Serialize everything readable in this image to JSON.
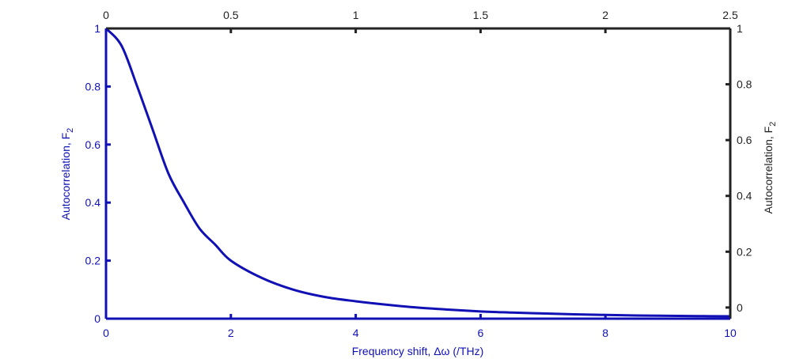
{
  "chart_data": {
    "type": "line",
    "title": "",
    "xlabel": "Frequency shift, Δω (/THz)",
    "ylabel": "Autocorrelation, F",
    "ylabel_subscript": "2",
    "ylabel_right": "Autocorrelation, F",
    "ylabel_right_subscript": "2",
    "xlabel_top": "",
    "xlim": [
      0,
      10
    ],
    "ylim": [
      0,
      1
    ],
    "xlim_top": [
      0,
      2.5
    ],
    "ylim_right": [
      -0.04,
      1
    ],
    "x_ticks": [
      "0",
      "2",
      "4",
      "6",
      "8",
      "10"
    ],
    "y_ticks": [
      "0",
      "0.2",
      "0.4",
      "0.6",
      "0.8",
      "1"
    ],
    "x_top_ticks": [
      "0",
      "0.5",
      "1",
      "1.5",
      "2",
      "2.5"
    ],
    "y_right_ticks": [
      "0",
      "0.2",
      "0.4",
      "0.6",
      "0.8",
      "1"
    ],
    "grid": false,
    "colors": {
      "primary": "#1010b4",
      "secondary": "#222222"
    },
    "series": [
      {
        "x": [
          0,
          0.25,
          0.5,
          0.75,
          1.0,
          1.25,
          1.5,
          1.75,
          2.0,
          2.5,
          3.0,
          3.5,
          4.0,
          4.5,
          5.0,
          5.5,
          6.0,
          6.5,
          7.0,
          7.5,
          8.0,
          8.5,
          9.0,
          9.5,
          10.0
        ],
        "values": [
          1.0,
          0.94,
          0.8,
          0.65,
          0.5,
          0.4,
          0.31,
          0.255,
          0.2,
          0.14,
          0.1,
          0.075,
          0.06,
          0.048,
          0.038,
          0.031,
          0.025,
          0.021,
          0.018,
          0.015,
          0.013,
          0.011,
          0.01,
          0.009,
          0.008
        ]
      }
    ]
  }
}
